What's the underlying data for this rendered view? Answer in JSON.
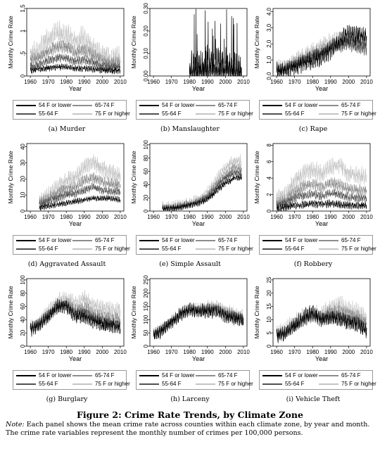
{
  "figure": {
    "title": "Figure 2: Crime Rate Trends, by Climate Zone",
    "note_label": "Note:",
    "note_text": "Each panel shows the mean crime rate across counties within each climate zone, by year and month. The crime rate variables represent the monthly number of crimes per 100,000 persons."
  },
  "colors": {
    "54 F or lower": "#000000",
    "55-64 F": "#505050",
    "65-74 F": "#8c8c8c",
    "75 F or higher": "#c4c4c4"
  },
  "chart_data": [
    {
      "type": "line",
      "caption": "(a) Murder",
      "xlabel": "Year",
      "ylabel": "Monthly Crime Rate",
      "xlim": [
        1958,
        2012
      ],
      "ylim": [
        0,
        1.5
      ],
      "xticks": [
        1960,
        1970,
        1980,
        1990,
        2000,
        2010
      ],
      "yticks": [
        "0",
        ".5",
        "1",
        "1.5"
      ],
      "x_years": [
        1960,
        1965,
        1970,
        1975,
        1980,
        1985,
        1990,
        1995,
        2000,
        2005,
        2010
      ],
      "series": [
        {
          "name": "54 F or lower",
          "values": [
            0.12,
            0.15,
            0.18,
            0.2,
            0.2,
            0.16,
            0.17,
            0.15,
            0.13,
            0.12,
            0.12
          ],
          "noise": 0.06
        },
        {
          "name": "55-64 F",
          "values": [
            0.2,
            0.25,
            0.35,
            0.4,
            0.4,
            0.32,
            0.36,
            0.3,
            0.22,
            0.2,
            0.2
          ],
          "noise": 0.08
        },
        {
          "name": "65-74 F",
          "values": [
            0.35,
            0.4,
            0.55,
            0.65,
            0.65,
            0.52,
            0.58,
            0.45,
            0.35,
            0.3,
            0.3
          ],
          "noise": 0.12
        },
        {
          "name": "75 F or higher",
          "values": [
            0.5,
            0.55,
            0.85,
            0.95,
            0.9,
            0.78,
            0.85,
            0.6,
            0.45,
            0.4,
            0.4
          ],
          "noise": 0.22
        }
      ],
      "legend": [
        "54 F or lower",
        "65-74 F",
        "55-64 F",
        "75 F or higher"
      ]
    },
    {
      "type": "line",
      "caption": "(b) Manslaughter",
      "xlabel": "Year",
      "ylabel": "Monthly Crime Rate",
      "xlim": [
        1958,
        2012
      ],
      "ylim": [
        0,
        0.3
      ],
      "xticks": [
        1960,
        1970,
        1980,
        1990,
        2000,
        2010
      ],
      "yticks": [
        "0.00",
        "0.10",
        "0.20",
        "0.30"
      ],
      "x_years": [
        1980,
        1985,
        1990,
        1995,
        2000,
        2005,
        2009
      ],
      "series": [
        {
          "name": "54 F or lower",
          "values": [
            0.02,
            0.03,
            0.04,
            0.05,
            0.04,
            0.03,
            0.02
          ],
          "noise": 0.07,
          "spikes": 0.3
        },
        {
          "name": "55-64 F",
          "values": [
            0.02,
            0.02,
            0.02,
            0.02,
            0.02,
            0.02,
            0.02
          ],
          "noise": 0.025
        },
        {
          "name": "65-74 F",
          "values": [
            0.015,
            0.015,
            0.02,
            0.02,
            0.02,
            0.015,
            0.015
          ],
          "noise": 0.02
        },
        {
          "name": "75 F or higher",
          "values": [
            0.02,
            0.02,
            0.02,
            0.02,
            0.02,
            0.02,
            0.02
          ],
          "noise": 0.03
        }
      ],
      "legend": [
        "54 F or lower",
        "65-74 F",
        "55-64 F",
        "75 F or higher"
      ]
    },
    {
      "type": "line",
      "caption": "(c) Rape",
      "xlabel": "Year",
      "ylabel": "Monthly Crime Rate",
      "xlim": [
        1958,
        2012
      ],
      "ylim": [
        0,
        4.2
      ],
      "xticks": [
        1960,
        1970,
        1980,
        1990,
        2000,
        2010
      ],
      "yticks": [
        "0.0",
        "1.0",
        "2.0",
        "3.0",
        "4.0"
      ],
      "x_years": [
        1960,
        1965,
        1970,
        1975,
        1980,
        1985,
        1990,
        1995,
        2000,
        2005,
        2010
      ],
      "series": [
        {
          "name": "54 F or lower",
          "values": [
            0.3,
            0.4,
            0.6,
            0.8,
            1.0,
            1.2,
            1.6,
            2.2,
            2.6,
            2.5,
            2.4
          ],
          "noise": 0.5
        },
        {
          "name": "55-64 F",
          "values": [
            0.3,
            0.4,
            0.7,
            0.9,
            1.2,
            1.4,
            1.7,
            1.9,
            2.0,
            1.8,
            1.7
          ],
          "noise": 0.35
        },
        {
          "name": "65-74 F",
          "values": [
            0.4,
            0.5,
            0.8,
            1.1,
            1.4,
            1.6,
            1.9,
            2.1,
            2.1,
            2.0,
            1.8
          ],
          "noise": 0.35
        },
        {
          "name": "75 F or higher",
          "values": [
            0.5,
            0.6,
            1.0,
            1.3,
            1.6,
            1.9,
            2.2,
            2.3,
            2.3,
            2.1,
            2.0
          ],
          "noise": 0.4
        }
      ],
      "legend": [
        "54 F or lower",
        "65-74 F",
        "55-64 F",
        "75 F or higher"
      ]
    },
    {
      "type": "line",
      "caption": "(d) Aggravated Assault",
      "xlabel": "Year",
      "ylabel": "Monthly Crime Rate",
      "xlim": [
        1958,
        2012
      ],
      "ylim": [
        0,
        42
      ],
      "xticks": [
        1960,
        1970,
        1980,
        1990,
        2000,
        2010
      ],
      "yticks": [
        "0",
        "10",
        "20",
        "30",
        "40"
      ],
      "x_years": [
        1965,
        1970,
        1975,
        1980,
        1985,
        1990,
        1995,
        2000,
        2005,
        2010
      ],
      "series": [
        {
          "name": "54 F or lower",
          "values": [
            2,
            3,
            4,
            5,
            6,
            7,
            8,
            8,
            8,
            7
          ],
          "noise": 1.5
        },
        {
          "name": "55-64 F",
          "values": [
            4,
            6,
            8,
            10,
            11,
            13,
            15,
            13,
            12,
            12
          ],
          "noise": 2.2
        },
        {
          "name": "65-74 F",
          "values": [
            5,
            8,
            11,
            14,
            15,
            19,
            21,
            18,
            17,
            16
          ],
          "noise": 3.0
        },
        {
          "name": "75 F or higher",
          "values": [
            6,
            10,
            15,
            19,
            21,
            27,
            31,
            26,
            24,
            22
          ],
          "noise": 4.5
        }
      ],
      "legend": [
        "54 F or lower",
        "65-74 F",
        "55-64 F",
        "75 F or higher"
      ]
    },
    {
      "type": "line",
      "caption": "(e) Simple Assault",
      "xlabel": "Year",
      "ylabel": "Monthly Crime Rate",
      "xlim": [
        1958,
        2012
      ],
      "ylim": [
        0,
        102
      ],
      "xticks": [
        1960,
        1970,
        1980,
        1990,
        2000,
        2010
      ],
      "yticks": [
        "0",
        "20",
        "40",
        "60",
        "80",
        "100"
      ],
      "x_years": [
        1965,
        1970,
        1975,
        1980,
        1985,
        1990,
        1995,
        2000,
        2005,
        2009
      ],
      "series": [
        {
          "name": "54 F or lower",
          "values": [
            3,
            4,
            6,
            9,
            12,
            18,
            30,
            42,
            50,
            50
          ],
          "noise": 4
        },
        {
          "name": "55-64 F",
          "values": [
            4,
            5,
            7,
            10,
            14,
            21,
            36,
            50,
            57,
            56
          ],
          "noise": 5
        },
        {
          "name": "65-74 F",
          "values": [
            4,
            5,
            7,
            11,
            15,
            23,
            40,
            56,
            65,
            64
          ],
          "noise": 6
        },
        {
          "name": "75 F or higher",
          "values": [
            5,
            6,
            8,
            12,
            17,
            27,
            47,
            66,
            76,
            75
          ],
          "noise": 8
        }
      ],
      "legend": [
        "54 F or lower",
        "65-74 F",
        "55-64 F",
        "75 F or higher"
      ]
    },
    {
      "type": "line",
      "caption": "(f) Robbery",
      "xlabel": "Year",
      "ylabel": "Monthly Crime Rate",
      "xlim": [
        1958,
        2012
      ],
      "ylim": [
        0,
        8.2
      ],
      "xticks": [
        1960,
        1970,
        1980,
        1990,
        2000,
        2010
      ],
      "yticks": [
        "0",
        "2",
        "4",
        "6",
        "8"
      ],
      "x_years": [
        1960,
        1965,
        1970,
        1975,
        1980,
        1985,
        1990,
        1995,
        2000,
        2005,
        2010
      ],
      "series": [
        {
          "name": "54 F or lower",
          "values": [
            0.3,
            0.5,
            0.7,
            0.8,
            0.9,
            0.8,
            0.9,
            0.8,
            0.7,
            0.7,
            0.7
          ],
          "noise": 0.4
        },
        {
          "name": "55-64 F",
          "values": [
            0.8,
            1.0,
            1.6,
            1.9,
            2.1,
            1.8,
            2.2,
            2.0,
            1.7,
            1.6,
            1.6
          ],
          "noise": 0.45
        },
        {
          "name": "65-74 F",
          "values": [
            1.0,
            1.3,
            2.3,
            3.0,
            3.3,
            2.9,
            3.4,
            3.2,
            2.6,
            2.5,
            2.5
          ],
          "noise": 0.6
        },
        {
          "name": "75 F or higher",
          "values": [
            1.5,
            2.0,
            3.6,
            4.6,
            5.0,
            4.5,
            5.4,
            5.6,
            4.5,
            4.3,
            4.3
          ],
          "noise": 0.9
        }
      ],
      "legend": [
        "54 F or lower",
        "65-74 F",
        "55-64 F",
        "75 F or higher"
      ]
    },
    {
      "type": "line",
      "caption": "(g) Burglary",
      "xlabel": "Year",
      "ylabel": "Monthly Crime Rate",
      "xlim": [
        1958,
        2012
      ],
      "ylim": [
        0,
        102
      ],
      "xticks": [
        1960,
        1970,
        1980,
        1990,
        2000,
        2010
      ],
      "yticks": [
        "0",
        "20",
        "40",
        "60",
        "80",
        "100"
      ],
      "x_years": [
        1960,
        1965,
        1970,
        1975,
        1980,
        1985,
        1990,
        1995,
        2000,
        2005,
        2010
      ],
      "series": [
        {
          "name": "54 F or lower",
          "values": [
            25,
            32,
            45,
            60,
            60,
            45,
            45,
            38,
            32,
            30,
            28
          ],
          "noise": 9
        },
        {
          "name": "55-64 F",
          "values": [
            25,
            32,
            45,
            58,
            62,
            50,
            50,
            42,
            38,
            35,
            33
          ],
          "noise": 8
        },
        {
          "name": "65-74 F",
          "values": [
            26,
            34,
            48,
            62,
            65,
            55,
            58,
            50,
            44,
            42,
            40
          ],
          "noise": 8
        },
        {
          "name": "75 F or higher",
          "values": [
            28,
            36,
            52,
            68,
            72,
            65,
            72,
            62,
            56,
            55,
            54
          ],
          "noise": 10
        }
      ],
      "legend": [
        "54 F or lower",
        "65-74 F",
        "55-64 F",
        "75 F or higher"
      ]
    },
    {
      "type": "line",
      "caption": "(h) Larceny",
      "xlabel": "Year",
      "ylabel": "Monthly Crime Rate",
      "xlim": [
        1958,
        2012
      ],
      "ylim": [
        0,
        255
      ],
      "xticks": [
        1960,
        1970,
        1980,
        1990,
        2000,
        2010
      ],
      "yticks": [
        "0",
        "50",
        "100",
        "150",
        "200",
        "250"
      ],
      "x_years": [
        1960,
        1965,
        1970,
        1975,
        1980,
        1985,
        1990,
        1995,
        2000,
        2005,
        2010
      ],
      "series": [
        {
          "name": "54 F or lower",
          "values": [
            40,
            60,
            90,
            120,
            140,
            130,
            135,
            130,
            115,
            105,
            95
          ],
          "noise": 22
        },
        {
          "name": "55-64 F",
          "values": [
            42,
            62,
            92,
            120,
            135,
            130,
            138,
            135,
            120,
            110,
            100
          ],
          "noise": 18
        },
        {
          "name": "65-74 F",
          "values": [
            44,
            64,
            94,
            122,
            138,
            135,
            145,
            145,
            130,
            118,
            108
          ],
          "noise": 18
        },
        {
          "name": "75 F or higher",
          "values": [
            46,
            66,
            96,
            125,
            140,
            140,
            150,
            155,
            135,
            125,
            115
          ],
          "noise": 20
        }
      ],
      "legend": [
        "54 F or lower",
        "65-74 F",
        "55-64 F",
        "75 F or higher"
      ]
    },
    {
      "type": "line",
      "caption": "(i) Vehicle Theft",
      "xlabel": "Year",
      "ylabel": "Monthly Crime Rate",
      "xlim": [
        1958,
        2012
      ],
      "ylim": [
        0,
        25.5
      ],
      "xticks": [
        1960,
        1970,
        1980,
        1990,
        2000,
        2010
      ],
      "yticks": [
        "0",
        "5",
        "10",
        "15",
        "20",
        "25"
      ],
      "x_years": [
        1960,
        1965,
        1970,
        1975,
        1980,
        1985,
        1990,
        1995,
        2000,
        2005,
        2010
      ],
      "series": [
        {
          "name": "54 F or lower",
          "values": [
            4,
            5,
            8,
            11,
            13,
            10,
            11,
            10,
            9,
            8,
            6
          ],
          "noise": 2.5
        },
        {
          "name": "55-64 F",
          "values": [
            4,
            5,
            7,
            10,
            12,
            10,
            11,
            11,
            10,
            9,
            7
          ],
          "noise": 2.0
        },
        {
          "name": "65-74 F",
          "values": [
            4,
            5,
            8,
            10,
            11,
            11,
            13,
            13,
            12,
            11,
            9
          ],
          "noise": 2.2
        },
        {
          "name": "75 F or higher",
          "values": [
            5,
            6,
            9,
            11,
            12,
            12,
            15,
            16,
            14,
            13,
            11
          ],
          "noise": 2.8
        }
      ],
      "legend": [
        "54 F or lower",
        "65-74 F",
        "55-64 F",
        "75 F or higher"
      ]
    }
  ]
}
